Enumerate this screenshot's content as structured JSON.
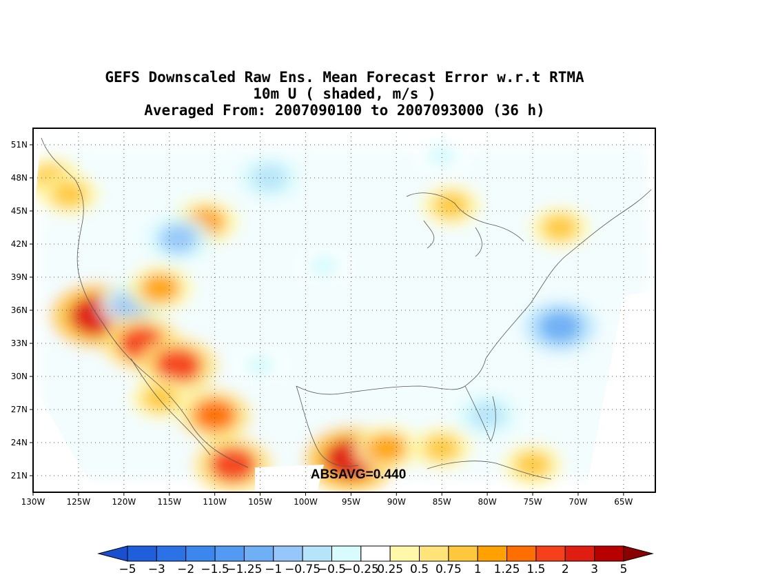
{
  "title": {
    "line1": "GEFS Downscaled Raw Ens. Mean Forecast Error w.r.t RTMA",
    "line2": "10m U ( shaded, m/s )",
    "line3": "Averaged From: 2007090100 to 2007093000 (36 h)"
  },
  "annotation": "ABSAVG=0.440",
  "axes": {
    "lat_labels": [
      "51N",
      "48N",
      "45N",
      "42N",
      "39N",
      "36N",
      "33N",
      "30N",
      "27N",
      "24N",
      "21N"
    ],
    "lon_labels": [
      "130W",
      "125W",
      "120W",
      "115W",
      "110W",
      "105W",
      "100W",
      "95W",
      "90W",
      "85W",
      "80W",
      "75W",
      "70W",
      "65W"
    ]
  },
  "colorbar": {
    "labels": [
      "-5",
      "-3",
      "-2",
      "-1.5",
      "-1.25",
      "-1",
      "-0.75",
      "-0.5",
      "-0.25",
      "0.25",
      "0.5",
      "0.75",
      "1",
      "1.25",
      "1.5",
      "2",
      "3",
      "5"
    ],
    "colors": [
      "#1f5fdc",
      "#2a72e6",
      "#3c87ee",
      "#539af3",
      "#6faff6",
      "#95c7fa",
      "#b6e5fa",
      "#d8fbfd",
      "#ffffff",
      "#fff8a8",
      "#ffe47a",
      "#ffc83c",
      "#ffa200",
      "#ff6e00",
      "#f5401c",
      "#df1d10",
      "#b80000"
    ],
    "low_arrow_color": "#1a4fd0",
    "high_arrow_color": "#8b0000"
  },
  "map": {
    "lon_range": [
      -130,
      -61.5
    ],
    "lat_range": [
      19.5,
      52.5
    ],
    "grid": true,
    "field": "10m U forecast error (m/s)"
  },
  "features": [
    {
      "name": "pacific-nw-positive",
      "lon": -128,
      "lat": 48,
      "value": 0.75
    },
    {
      "name": "washington-positive",
      "lon": -126,
      "lat": 46.5,
      "value": 0.75
    },
    {
      "name": "montana-positive",
      "lon": -111,
      "lat": 44,
      "value": 1.0
    },
    {
      "name": "idaho-negative",
      "lon": -114,
      "lat": 42.5,
      "value": -1.0
    },
    {
      "name": "dakota-negative",
      "lon": -104,
      "lat": 48,
      "value": -0.75
    },
    {
      "name": "ncal-coast-positive",
      "lon": -123,
      "lat": 35.5,
      "value": 2.0
    },
    {
      "name": "nevada-negative",
      "lon": -119,
      "lat": 36.5,
      "value": -1.0
    },
    {
      "name": "utah-positive",
      "lon": -116,
      "lat": 38,
      "value": 1.0
    },
    {
      "name": "socal-positive",
      "lon": -118,
      "lat": 33,
      "value": 1.5
    },
    {
      "name": "arizona-positive",
      "lon": -114,
      "lat": 31,
      "value": 1.5
    },
    {
      "name": "mexico-west-positive",
      "lon": -110,
      "lat": 26.5,
      "value": 1.25
    },
    {
      "name": "baja-positive",
      "lon": -116,
      "lat": 28,
      "value": 0.75
    },
    {
      "name": "sw-mexico-positive",
      "lon": -108,
      "lat": 22,
      "value": 1.5
    },
    {
      "name": "gulf-west-positive",
      "lon": -95,
      "lat": 22.5,
      "value": 2.0
    },
    {
      "name": "gulf-central-positive",
      "lon": -91,
      "lat": 23.5,
      "value": 1.0
    },
    {
      "name": "gulf-east-positive",
      "lon": -85,
      "lat": 23.5,
      "value": 0.75
    },
    {
      "name": "caribbean-positive",
      "lon": -75,
      "lat": 22,
      "value": 0.75
    },
    {
      "name": "great-lakes-positive",
      "lon": -84,
      "lat": 45.5,
      "value": 0.75
    },
    {
      "name": "new-england-positive",
      "lon": -72,
      "lat": 43.5,
      "value": 0.75
    },
    {
      "name": "ontario-negative",
      "lon": -85,
      "lat": 50,
      "value": -0.5
    },
    {
      "name": "atlantic-negative",
      "lon": -72,
      "lat": 34.5,
      "value": -1.25
    },
    {
      "name": "florida-negative",
      "lon": -80,
      "lat": 26.5,
      "value": -0.75
    },
    {
      "name": "plains-negative",
      "lon": -98,
      "lat": 40,
      "value": -0.5
    },
    {
      "name": "texas-negative",
      "lon": -105,
      "lat": 31,
      "value": -0.5
    }
  ]
}
